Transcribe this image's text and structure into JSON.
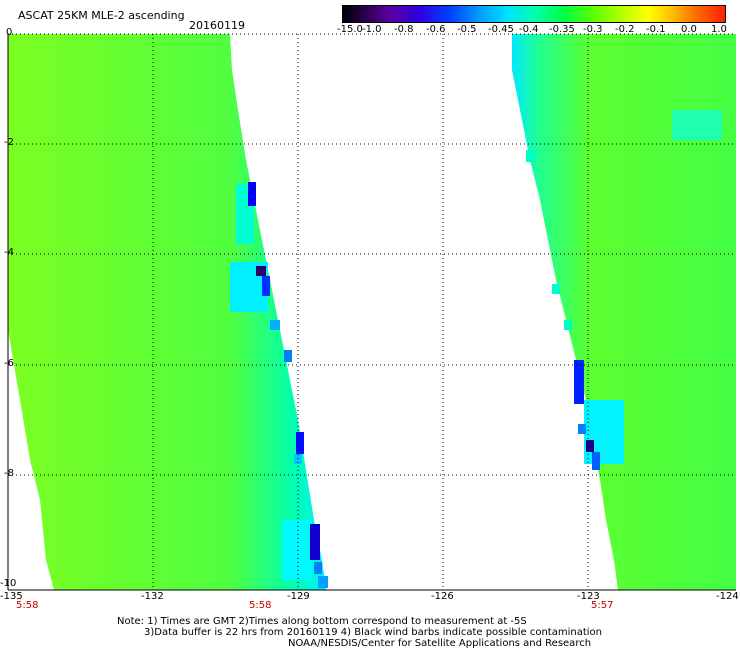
{
  "header": {
    "title": "ASCAT 25KM MLE-2 ascending",
    "date": "20160119"
  },
  "colorbar": {
    "labels": [
      "-15.0",
      "-1.0",
      "-0.8",
      "-0.6",
      "-0.5",
      "-0.45",
      "-0.4",
      "-0.35",
      "-0.3",
      "-0.2",
      "-0.1",
      "0.0",
      "1.0"
    ]
  },
  "axes": {
    "x_ticks": [
      "-135",
      "-132",
      "-129",
      "-126",
      "-123",
      "-124"
    ],
    "y_ticks": [
      "0",
      "-2",
      "-4",
      "-6",
      "-8",
      "-10"
    ],
    "lon_range": [
      -135,
      -120
    ],
    "lat_range": [
      -10,
      0
    ]
  },
  "time_labels": [
    "5:58",
    "5:58",
    "5:57"
  ],
  "notes": {
    "line1": "Note: 1) Times are GMT 2)Times along bottom correspond to measurement at -5S",
    "line2": "3)Data buffer is 22 hrs from 20160119 4) Black wind barbs indicate possible contamination",
    "line3": "NOAA/NESDIS/Center for Satellite Applications and Research"
  },
  "colors": {
    "field": "#7fff20",
    "low": "#00ffd0",
    "very_low": "#0020ff",
    "extreme": "#3a006a"
  }
}
